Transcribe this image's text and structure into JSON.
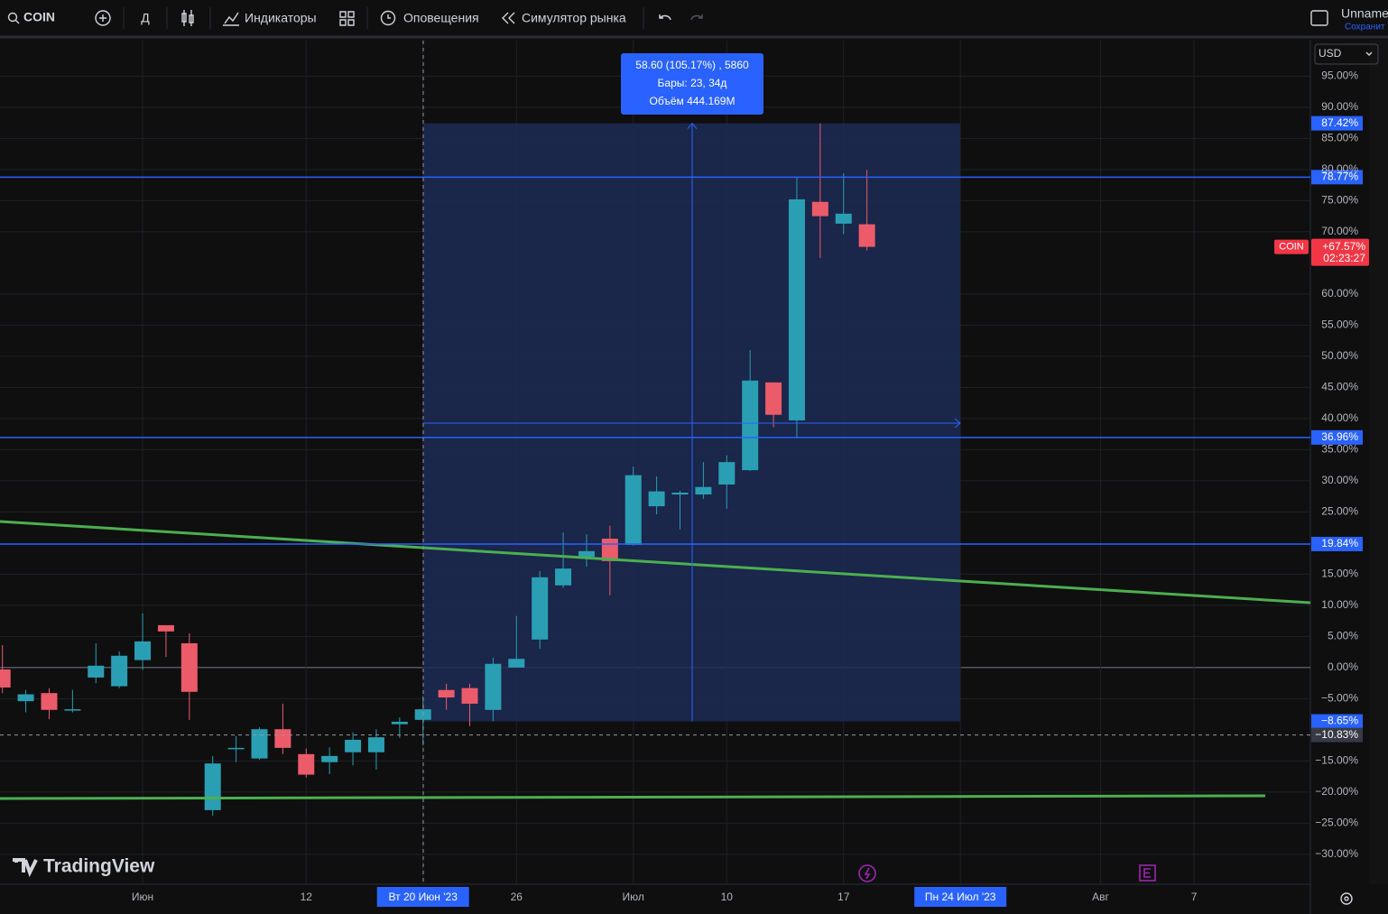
{
  "toolbar": {
    "symbol": "COIN",
    "interval": "Д",
    "indicators": "Индикаторы",
    "alerts": "Оповещения",
    "replay": "Симулятор рынка",
    "layout_name": "Unname",
    "save": "Сохранит",
    "currency": "USD"
  },
  "logo": "TradingView",
  "chart_data": {
    "type": "candlestick",
    "categories": [
      null,
      null,
      null,
      null,
      null,
      null,
      "Июн",
      null,
      null,
      null,
      null,
      null,
      null,
      "12",
      null,
      null,
      null,
      null,
      "Вт 20 Июн '23",
      null,
      null,
      null,
      "26",
      null,
      null,
      null,
      null,
      "Июл",
      null,
      null,
      null,
      "10",
      null,
      null,
      null,
      null,
      "17",
      null,
      null,
      null,
      null,
      "Пн 24 Июл '23",
      null,
      null,
      null,
      null,
      null,
      "Авг",
      null,
      null,
      null,
      "7",
      null,
      null,
      null,
      null
    ],
    "open": [
      -0.3,
      -5.4,
      -4.1,
      -6.8,
      -1.6,
      -3.0,
      1.2,
      6.8,
      3.9,
      -22.9,
      -13.0,
      -14.6,
      -9.9,
      -13.9,
      -15.2,
      -13.6,
      -13.6,
      -9.1,
      -8.4,
      -3.6,
      -3.3,
      -6.8,
      0.0,
      4.5,
      13.2,
      17.8,
      20.7,
      19.7,
      25.9,
      27.8,
      27.8,
      29.4,
      31.7,
      45.8,
      39.7,
      74.8,
      71.3,
      71.2,
      null,
      null,
      null,
      null,
      null,
      null,
      null,
      null,
      null,
      null,
      null,
      null,
      null,
      null,
      null,
      null,
      null,
      null
    ],
    "high": [
      3.6,
      -3.6,
      -3.3,
      -3.6,
      3.9,
      2.6,
      8.7,
      6.8,
      5.5,
      -14.2,
      -11.0,
      -9.6,
      -5.8,
      -13.0,
      -12.8,
      -10.4,
      -9.9,
      -8.0,
      -4.6,
      -2.6,
      -2.6,
      1.6,
      8.3,
      15.5,
      21.7,
      21.4,
      22.8,
      32.3,
      30.7,
      28.4,
      33.0,
      34.1,
      51.0,
      45.8,
      78.8,
      87.4,
      79.4,
      79.9,
      null,
      null,
      null,
      null,
      null,
      null,
      null,
      null,
      null,
      null,
      null,
      null,
      null,
      null,
      null,
      null,
      null,
      null
    ],
    "low": [
      -4.1,
      -7.2,
      -8.3,
      -7.2,
      -2.5,
      -3.3,
      -0.4,
      1.7,
      -8.4,
      -23.8,
      -15.2,
      -14.8,
      -13.9,
      -17.7,
      -17.1,
      -15.7,
      -16.4,
      -11.3,
      -12.5,
      -6.8,
      -9.4,
      -8.6,
      0.0,
      3.0,
      12.8,
      16.2,
      11.6,
      19.6,
      24.6,
      22.2,
      27.1,
      25.5,
      31.6,
      38.6,
      36.8,
      65.8,
      69.6,
      67.0,
      null,
      null,
      null,
      null,
      null,
      null,
      null,
      null,
      null,
      null,
      null,
      null,
      null,
      null,
      null,
      null,
      null,
      null
    ],
    "close": [
      -3.2,
      -4.3,
      -6.8,
      -6.7,
      0.3,
      1.9,
      4.2,
      5.8,
      -3.9,
      -15.4,
      -12.9,
      -9.9,
      -12.9,
      -17.2,
      -14.2,
      -11.6,
      -11.2,
      -8.7,
      -6.7,
      -4.8,
      -5.8,
      0.6,
      1.4,
      14.5,
      15.9,
      18.7,
      17.1,
      30.9,
      28.3,
      28.1,
      29.0,
      33.0,
      46.1,
      40.6,
      75.2,
      72.5,
      72.9,
      67.57,
      null,
      null,
      null,
      null,
      null,
      null,
      null,
      null,
      null,
      null,
      null,
      null,
      null,
      null,
      null,
      null,
      null,
      null
    ],
    "up_color": "#2a9fb3",
    "down_color": "#ec5b6a",
    "ylim": [
      -34.8,
      100.7
    ],
    "yticks": [
      {
        "value": 95,
        "label": "95.00%"
      },
      {
        "value": 90,
        "label": "90.00%"
      },
      {
        "value": 85,
        "label": "85.00%"
      },
      {
        "value": 80,
        "label": "80.00%"
      },
      {
        "value": 75,
        "label": "75.00%"
      },
      {
        "value": 70,
        "label": "70.00%"
      },
      {
        "value": 60,
        "label": "60.00%"
      },
      {
        "value": 55,
        "label": "55.00%"
      },
      {
        "value": 50,
        "label": "50.00%"
      },
      {
        "value": 45,
        "label": "45.00%"
      },
      {
        "value": 40,
        "label": "40.00%"
      },
      {
        "value": 35,
        "label": "35.00%"
      },
      {
        "value": 30,
        "label": "30.00%"
      },
      {
        "value": 25,
        "label": "25.00%"
      },
      {
        "value": 15,
        "label": "15.00%"
      },
      {
        "value": 10,
        "label": "10.00%"
      },
      {
        "value": 5,
        "label": "5.00%"
      },
      {
        "value": 0,
        "label": "0.00%"
      },
      {
        "value": -5,
        "label": "−5.00%"
      },
      {
        "value": -15,
        "label": "−15.00%"
      },
      {
        "value": -20,
        "label": "−20.00%"
      },
      {
        "value": -25,
        "label": "−25.00%"
      },
      {
        "value": -30,
        "label": "−30.00%"
      }
    ],
    "grid": true,
    "baseline": 0,
    "hlines": [
      {
        "value": 78.77,
        "label": "78.77%"
      },
      {
        "value": 36.96,
        "label": "36.96%"
      },
      {
        "value": 19.84,
        "label": "19.84%"
      }
    ],
    "range": {
      "top": {
        "value": 87.42,
        "label": "87.42%"
      },
      "bottom": {
        "value": -8.65,
        "label": "−8.65%"
      },
      "info": [
        "58.60 (105.17%) , 5860",
        "Бары: 23, 34д",
        "Объём 444.169M"
      ]
    },
    "crosshair": {
      "value": -10.83,
      "label": "−10.83%"
    },
    "last": {
      "symbol": "COIN",
      "value": 67.57,
      "label": "+67.57%",
      "countdown": "02:23:27"
    }
  }
}
